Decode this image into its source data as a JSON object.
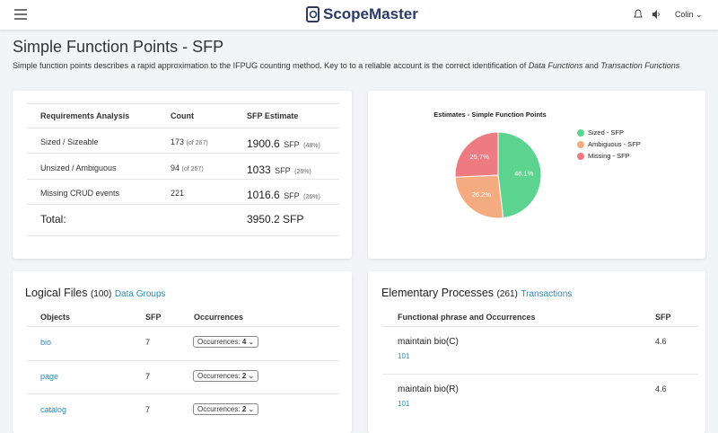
{
  "header": {
    "brand": "ScopeMaster",
    "user": "Colin"
  },
  "page": {
    "title": "Simple Function Points - SFP",
    "description": [
      "Simple function points describes a rapid approximation to the IFPUG counting method. Key to to a reliable account is the correct identification of ",
      "Data Functions",
      " and ",
      "Transaction Functions"
    ]
  },
  "summary_table": {
    "columns": [
      "Requirements Analysis",
      "Count",
      "SFP Estimate"
    ],
    "rows": [
      {
        "label": "Sized / Sizeable",
        "count": "173",
        "count_note": "(of 267)",
        "estimate": "1900.6",
        "unit": "SFP",
        "share": "(48%)"
      },
      {
        "label": "Unsized / Ambiguous",
        "count": "94",
        "count_note": "(of 267)",
        "estimate": "1033",
        "unit": "SFP",
        "share": "(26%)"
      },
      {
        "label": "Missing CRUD events",
        "count": "221",
        "count_note": "",
        "estimate": "1016.6",
        "unit": "SFP",
        "share": "(26%)"
      }
    ],
    "total": {
      "label": "Total:",
      "value": "3950.2 SFP"
    }
  },
  "chart_data": {
    "type": "pie",
    "title": "Estimates - Simple Function Points",
    "categories": [
      "Sized - SFP",
      "Ambiguous - SFP",
      "Missing - SFP"
    ],
    "values": [
      48.1,
      26.2,
      25.7
    ],
    "value_labels": [
      "48.1%",
      "26.2%",
      "25.7%"
    ],
    "colors": [
      "#5cd48f",
      "#f5ab80",
      "#ee7a82"
    ],
    "legend": "right"
  },
  "logical_files": {
    "title": "Logical Files",
    "count": "(100)",
    "link": "Data Groups",
    "columns": [
      "Objects",
      "SFP",
      "Occurrences"
    ],
    "rows": [
      {
        "object": "bio",
        "sfp": "7",
        "occurrences_label": "Occurrences:",
        "occurrences": "4"
      },
      {
        "object": "page",
        "sfp": "7",
        "occurrences_label": "Occurrences:",
        "occurrences": "2"
      },
      {
        "object": "catalog",
        "sfp": "7",
        "occurrences_label": "Occurrences:",
        "occurrences": "2"
      }
    ]
  },
  "elementary_processes": {
    "title": "Elementary Processes",
    "count": "(261)",
    "link": "Transactions",
    "columns": [
      "Functional phrase and Occurrences",
      "SFP"
    ],
    "rows": [
      {
        "phrase": "maintain bio(C)",
        "occurrences": "101",
        "sfp": "4.6"
      },
      {
        "phrase": "maintain bio(R)",
        "occurrences": "101",
        "sfp": "4.6"
      }
    ]
  }
}
